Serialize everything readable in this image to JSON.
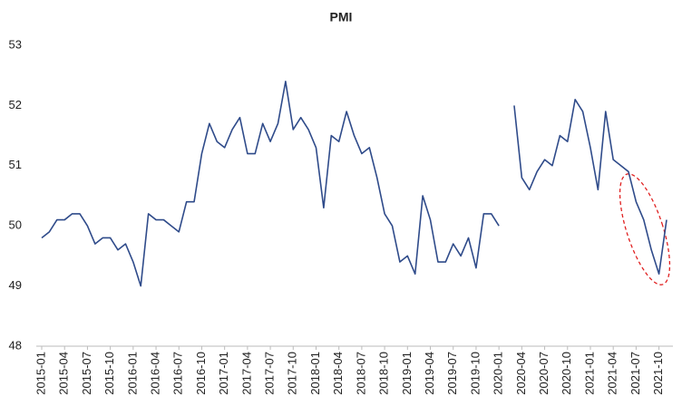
{
  "chart_data": {
    "type": "line",
    "title": "PMI",
    "categories": [
      "2015-01",
      null,
      null,
      "2015-04",
      null,
      null,
      "2015-07",
      null,
      null,
      "2015-10",
      null,
      null,
      "2016-01",
      null,
      null,
      "2016-04",
      null,
      null,
      "2016-07",
      null,
      null,
      "2016-10",
      null,
      null,
      "2017-01",
      null,
      null,
      "2017-04",
      null,
      null,
      "2017-07",
      null,
      null,
      "2017-10",
      null,
      null,
      "2018-01",
      null,
      null,
      "2018-04",
      null,
      null,
      "2018-07",
      null,
      null,
      "2018-10",
      null,
      null,
      "2019-01",
      null,
      null,
      "2019-04",
      null,
      null,
      "2019-07",
      null,
      null,
      "2019-10",
      null,
      null,
      "2020-01",
      null,
      null,
      "2020-04",
      null,
      null,
      "2020-07",
      null,
      null,
      "2020-10",
      null,
      null,
      "2021-01",
      null,
      null,
      "2021-04",
      null,
      null,
      "2021-07",
      null,
      null,
      "2021-10",
      null
    ],
    "series": [
      {
        "name": "PMI",
        "color": "#2f4b8a",
        "values": [
          49.8,
          49.9,
          50.1,
          50.1,
          50.2,
          50.2,
          50.0,
          49.7,
          49.8,
          49.8,
          49.6,
          49.7,
          49.4,
          49.0,
          50.2,
          50.1,
          50.1,
          50.0,
          49.9,
          50.4,
          50.4,
          51.2,
          51.7,
          51.4,
          51.3,
          51.6,
          51.8,
          51.2,
          51.2,
          51.7,
          51.4,
          51.7,
          52.4,
          51.6,
          51.8,
          51.6,
          51.3,
          50.3,
          51.5,
          51.4,
          51.9,
          51.5,
          51.2,
          51.3,
          50.8,
          50.2,
          50.0,
          49.4,
          49.5,
          49.2,
          50.5,
          50.1,
          49.4,
          49.4,
          49.7,
          49.5,
          49.8,
          49.3,
          50.2,
          50.2,
          50.0,
          null,
          52.0,
          50.8,
          50.6,
          50.9,
          51.1,
          51.0,
          51.5,
          51.4,
          52.1,
          51.9,
          51.3,
          50.6,
          51.9,
          51.1,
          51.0,
          50.9,
          50.4,
          50.1,
          49.6,
          49.2,
          50.1
        ]
      }
    ],
    "ylim": [
      48,
      53
    ],
    "yticks": [
      48,
      49,
      50,
      51,
      52,
      53
    ],
    "grid": false
  }
}
